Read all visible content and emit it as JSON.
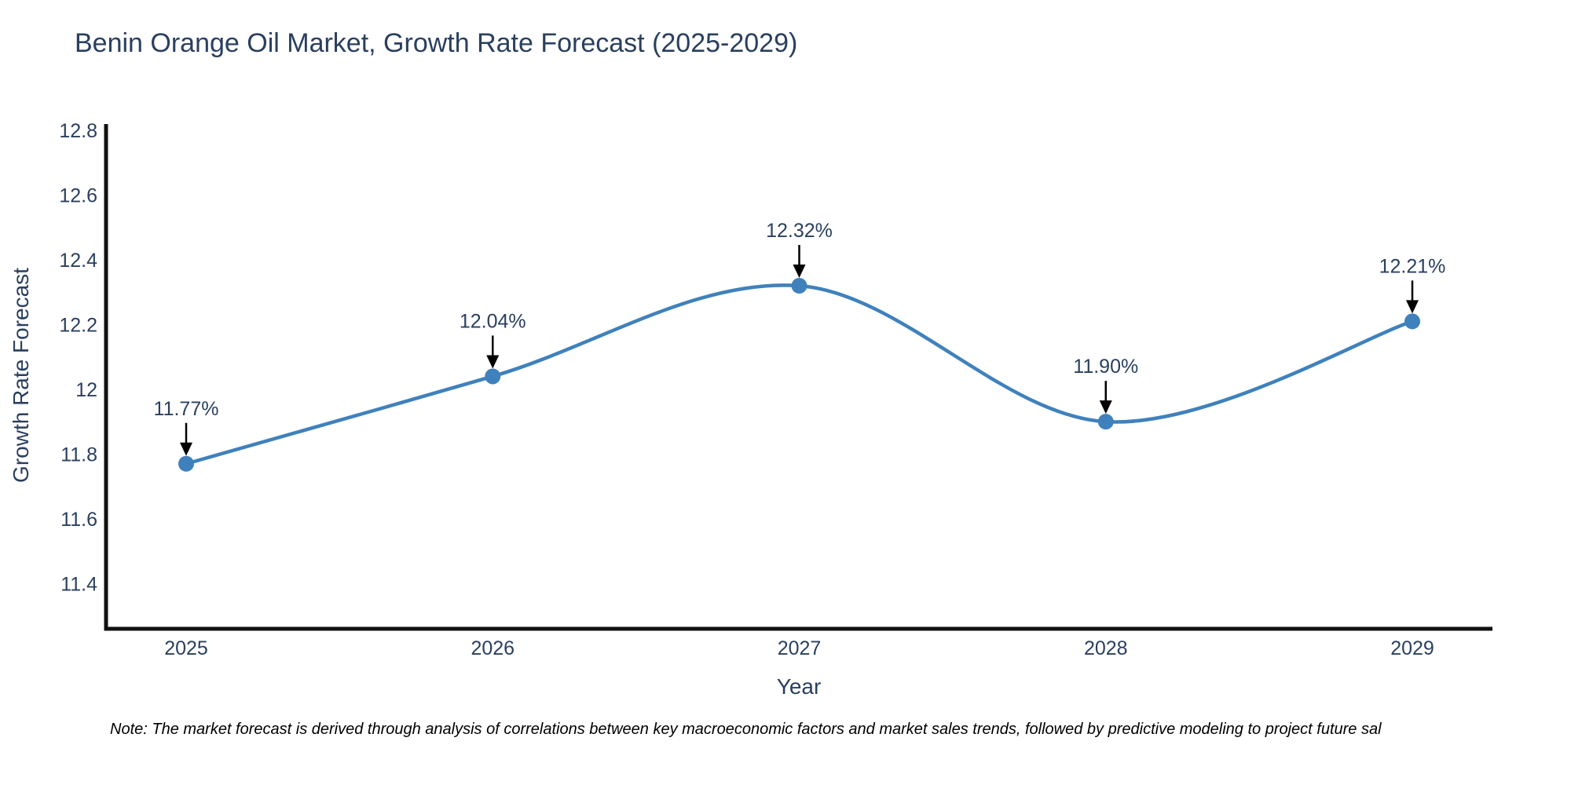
{
  "page": {
    "note": "Note: The market forecast is derived through analysis of correlations between key macroeconomic factors and market sales trends, followed by predictive modeling to project future sal"
  },
  "chart_data": {
    "type": "line",
    "title": "Benin Orange Oil Market, Growth Rate Forecast (2025-2029)",
    "xlabel": "Year",
    "ylabel": "Growth Rate Forecast",
    "categories": [
      "2025",
      "2026",
      "2027",
      "2028",
      "2029"
    ],
    "series": [
      {
        "name": "Growth Rate Forecast",
        "values": [
          11.77,
          12.04,
          12.32,
          11.9,
          12.21
        ],
        "point_labels": [
          "11.77%",
          "12.04%",
          "12.32%",
          "11.90%",
          "12.21%"
        ]
      }
    ],
    "ylim": [
      11.26,
      12.815
    ],
    "yticks": [
      11.4,
      11.6,
      11.8,
      12,
      12.2,
      12.4,
      12.6,
      12.8
    ],
    "ytick_labels": [
      "11.4",
      "11.6",
      "11.8",
      "12",
      "12.2",
      "12.4",
      "12.6",
      "12.8"
    ],
    "line_shape": "spline",
    "grid": false,
    "legend_position": "none",
    "colors": {
      "line": "#3f81bc",
      "marker": "#3f81bc",
      "text": "#2a3f5f",
      "axis": "#111111",
      "arrow": "#000000"
    }
  }
}
